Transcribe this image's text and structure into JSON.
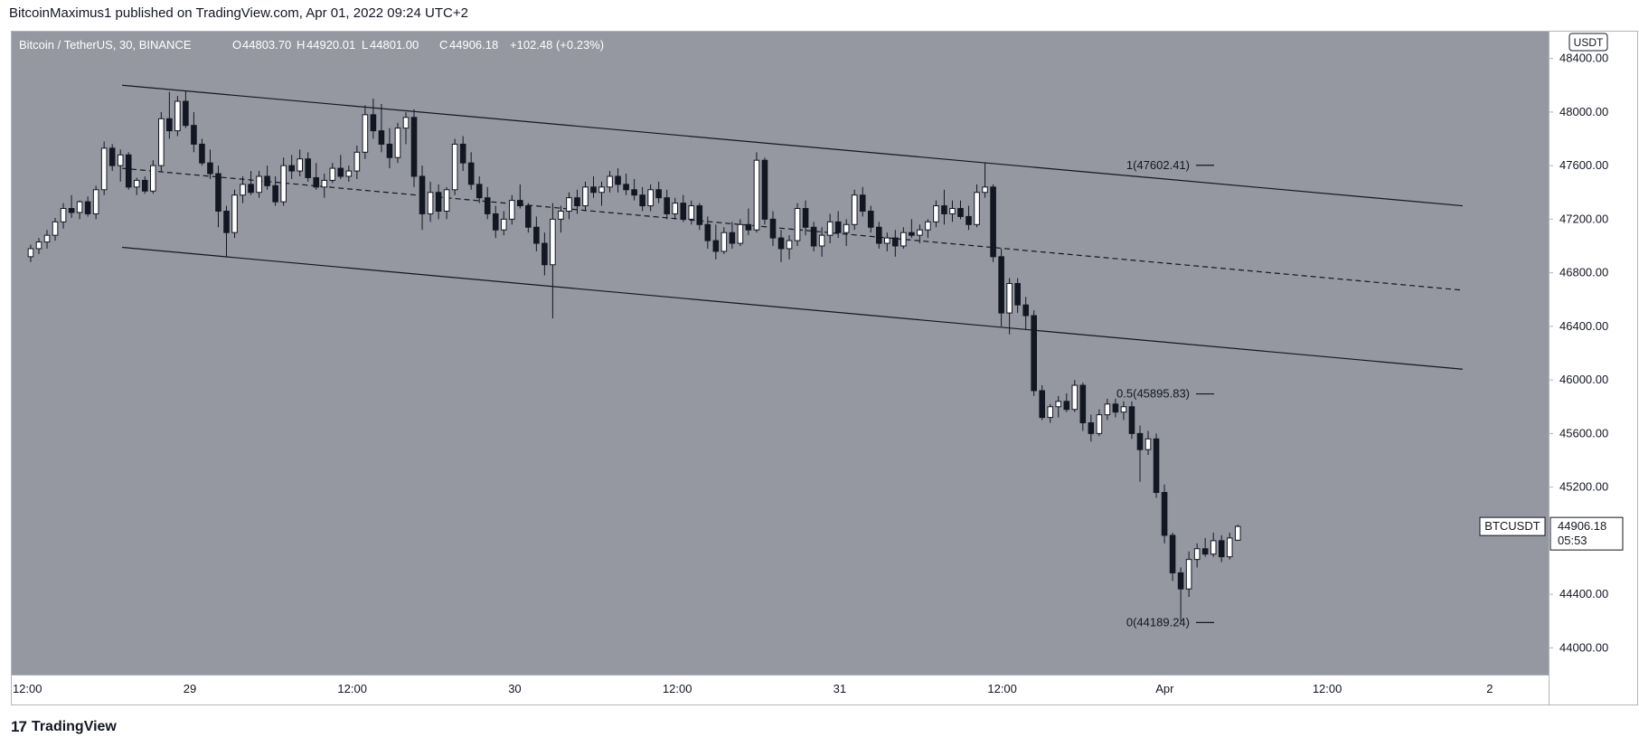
{
  "publisher_line": "BitcoinMaximus1 published on TradingView.com, Apr 01, 2022 09:24 UTC+2",
  "footer": {
    "logo_glyph": "17",
    "brand": "TradingView"
  },
  "colors": {
    "plot_bg": "#9598a1",
    "axis_bg": "#ffffff",
    "up": "#ffffff",
    "down": "#131722",
    "line": "#131722"
  },
  "chart_data": {
    "type": "candlestick",
    "symbol_line": {
      "name": "Bitcoin / TetherUS, 30, BINANCE",
      "O": "O",
      "o_val": "44803.70",
      "H": "H",
      "h_val": "44920.01",
      "L": "L",
      "l_val": "44801.00",
      "C": "C",
      "c_val": "44906.18",
      "change": "+102.48 (+0.23%)"
    },
    "currency": "USDT",
    "ylim": [
      43800,
      48600
    ],
    "y_ticks": [
      "48400.00",
      "48000.00",
      "47600.00",
      "47200.00",
      "46800.00",
      "46400.00",
      "46000.00",
      "45600.00",
      "45200.00",
      "44800.00",
      "44400.00",
      "44000.00"
    ],
    "y_tick_values": [
      48400,
      48000,
      47600,
      47200,
      46800,
      46400,
      46000,
      45600,
      45200,
      44800,
      44400,
      44000
    ],
    "x_ticks": [
      {
        "label": "12:00",
        "t": 0
      },
      {
        "label": "29",
        "t": 24
      },
      {
        "label": "12:00",
        "t": 48
      },
      {
        "label": "30",
        "t": 72
      },
      {
        "label": "12:00",
        "t": 96
      },
      {
        "label": "31",
        "t": 120
      },
      {
        "label": "12:00",
        "t": 144
      },
      {
        "label": "Apr",
        "t": 168
      },
      {
        "label": "12:00",
        "t": 192
      },
      {
        "label": "2",
        "t": 216
      }
    ],
    "x_range_hours": [
      -2.3,
      224.7
    ],
    "last_price": {
      "ticker": "BTCUSDT",
      "value": "44906.18",
      "countdown": "05:53",
      "price": 44906.18
    },
    "fib_levels": [
      {
        "label": "1(47602.41)",
        "price": 47602.41
      },
      {
        "label": "0.5(45895.83)",
        "price": 45895.83
      },
      {
        "label": "0(44189.24)",
        "price": 44189.24
      }
    ],
    "channel": {
      "upper": [
        {
          "t": 14,
          "p": 48200
        },
        {
          "t": 212,
          "p": 47300
        }
      ],
      "middle": [
        {
          "t": 14,
          "p": 47580
        },
        {
          "t": 212,
          "p": 46670
        }
      ],
      "lower": [
        {
          "t": 14,
          "p": 46990
        },
        {
          "t": 212,
          "p": 46080
        }
      ]
    },
    "candles": [
      [
        46920,
        47010,
        46880,
        46980
      ],
      [
        46980,
        47060,
        46940,
        47030
      ],
      [
        47030,
        47120,
        46980,
        47080
      ],
      [
        47080,
        47210,
        47040,
        47180
      ],
      [
        47180,
        47320,
        47130,
        47280
      ],
      [
        47280,
        47380,
        47210,
        47250
      ],
      [
        47250,
        47340,
        47200,
        47330
      ],
      [
        47330,
        47370,
        47220,
        47240
      ],
      [
        47240,
        47450,
        47200,
        47420
      ],
      [
        47420,
        47780,
        47380,
        47730
      ],
      [
        47730,
        47760,
        47560,
        47600
      ],
      [
        47600,
        47720,
        47480,
        47680
      ],
      [
        47680,
        47700,
        47420,
        47440
      ],
      [
        47440,
        47510,
        47380,
        47490
      ],
      [
        47490,
        47520,
        47390,
        47410
      ],
      [
        47410,
        47640,
        47390,
        47600
      ],
      [
        47600,
        48000,
        47550,
        47950
      ],
      [
        47950,
        48150,
        47800,
        47860
      ],
      [
        47860,
        48120,
        47820,
        48080
      ],
      [
        48080,
        48160,
        47880,
        47900
      ],
      [
        47900,
        48000,
        47700,
        47760
      ],
      [
        47760,
        47800,
        47600,
        47620
      ],
      [
        47620,
        47720,
        47500,
        47540
      ],
      [
        47540,
        47600,
        47140,
        47260
      ],
      [
        47260,
        47300,
        46920,
        47100
      ],
      [
        47100,
        47420,
        47060,
        47380
      ],
      [
        47380,
        47520,
        47320,
        47460
      ],
      [
        47460,
        47560,
        47380,
        47400
      ],
      [
        47400,
        47560,
        47360,
        47520
      ],
      [
        47520,
        47600,
        47420,
        47450
      ],
      [
        47450,
        47520,
        47300,
        47330
      ],
      [
        47330,
        47660,
        47300,
        47600
      ],
      [
        47600,
        47680,
        47500,
        47560
      ],
      [
        47560,
        47720,
        47520,
        47650
      ],
      [
        47650,
        47700,
        47480,
        47510
      ],
      [
        47510,
        47620,
        47420,
        47440
      ],
      [
        47440,
        47540,
        47360,
        47490
      ],
      [
        47490,
        47620,
        47470,
        47580
      ],
      [
        47580,
        47680,
        47500,
        47520
      ],
      [
        47520,
        47600,
        47480,
        47560
      ],
      [
        47560,
        47750,
        47500,
        47700
      ],
      [
        47700,
        48050,
        47650,
        47980
      ],
      [
        47980,
        48100,
        47800,
        47860
      ],
      [
        47860,
        48060,
        47700,
        47760
      ],
      [
        47760,
        47880,
        47580,
        47660
      ],
      [
        47660,
        47920,
        47620,
        47880
      ],
      [
        47880,
        48000,
        47760,
        47960
      ],
      [
        47960,
        48020,
        47440,
        47520
      ],
      [
        47520,
        47600,
        47120,
        47240
      ],
      [
        47240,
        47480,
        47180,
        47400
      ],
      [
        47400,
        47460,
        47200,
        47260
      ],
      [
        47260,
        47440,
        47200,
        47420
      ],
      [
        47420,
        47800,
        47380,
        47760
      ],
      [
        47760,
        47820,
        47560,
        47620
      ],
      [
        47620,
        47700,
        47420,
        47460
      ],
      [
        47460,
        47520,
        47320,
        47360
      ],
      [
        47360,
        47440,
        47200,
        47240
      ],
      [
        47240,
        47300,
        47060,
        47120
      ],
      [
        47120,
        47260,
        47080,
        47200
      ],
      [
        47200,
        47380,
        47160,
        47340
      ],
      [
        47340,
        47460,
        47280,
        47300
      ],
      [
        47300,
        47320,
        47100,
        47140
      ],
      [
        47140,
        47220,
        46960,
        47020
      ],
      [
        47020,
        47100,
        46780,
        46860
      ],
      [
        46860,
        47320,
        46460,
        47200
      ],
      [
        47200,
        47300,
        47100,
        47260
      ],
      [
        47260,
        47400,
        47200,
        47360
      ],
      [
        47360,
        47420,
        47240,
        47300
      ],
      [
        47300,
        47480,
        47260,
        47440
      ],
      [
        47440,
        47520,
        47360,
        47400
      ],
      [
        47400,
        47480,
        47300,
        47440
      ],
      [
        47440,
        47560,
        47400,
        47520
      ],
      [
        47520,
        47580,
        47400,
        47460
      ],
      [
        47460,
        47540,
        47380,
        47420
      ],
      [
        47420,
        47500,
        47340,
        47380
      ],
      [
        47380,
        47440,
        47260,
        47300
      ],
      [
        47300,
        47460,
        47260,
        47420
      ],
      [
        47420,
        47480,
        47320,
        47360
      ],
      [
        47360,
        47420,
        47200,
        47240
      ],
      [
        47240,
        47360,
        47200,
        47320
      ],
      [
        47320,
        47380,
        47180,
        47200
      ],
      [
        47200,
        47340,
        47160,
        47300
      ],
      [
        47300,
        47320,
        47120,
        47160
      ],
      [
        47160,
        47220,
        46980,
        47040
      ],
      [
        47040,
        47160,
        46900,
        46960
      ],
      [
        46960,
        47140,
        46940,
        47100
      ],
      [
        47100,
        47180,
        46980,
        47020
      ],
      [
        47020,
        47200,
        47000,
        47160
      ],
      [
        47160,
        47280,
        47080,
        47120
      ],
      [
        47120,
        47700,
        47100,
        47640
      ],
      [
        47640,
        47660,
        47160,
        47200
      ],
      [
        47200,
        47260,
        47000,
        47060
      ],
      [
        47060,
        47120,
        46880,
        46980
      ],
      [
        46980,
        47080,
        46900,
        47040
      ],
      [
        47040,
        47320,
        47000,
        47280
      ],
      [
        47280,
        47340,
        47080,
        47140
      ],
      [
        47140,
        47180,
        46960,
        47000
      ],
      [
        47000,
        47140,
        46920,
        47080
      ],
      [
        47080,
        47240,
        47020,
        47180
      ],
      [
        47180,
        47260,
        47060,
        47100
      ],
      [
        47100,
        47200,
        47000,
        47160
      ],
      [
        47160,
        47420,
        47120,
        47380
      ],
      [
        47380,
        47440,
        47220,
        47260
      ],
      [
        47260,
        47300,
        47100,
        47140
      ],
      [
        47140,
        47180,
        46980,
        47020
      ],
      [
        47020,
        47100,
        46960,
        47060
      ],
      [
        47060,
        47120,
        46920,
        47000
      ],
      [
        47000,
        47140,
        46980,
        47100
      ],
      [
        47100,
        47200,
        47060,
        47080
      ],
      [
        47080,
        47160,
        47020,
        47120
      ],
      [
        47120,
        47200,
        47060,
        47180
      ],
      [
        47180,
        47340,
        47140,
        47300
      ],
      [
        47300,
        47420,
        47160,
        47240
      ],
      [
        47240,
        47340,
        47180,
        47280
      ],
      [
        47280,
        47340,
        47200,
        47220
      ],
      [
        47220,
        47300,
        47120,
        47160
      ],
      [
        47160,
        47460,
        47140,
        47400
      ],
      [
        47400,
        47620,
        47360,
        47440
      ],
      [
        47440,
        47460,
        46880,
        46920
      ],
      [
        46920,
        46980,
        46400,
        46500
      ],
      [
        46500,
        46760,
        46340,
        46720
      ],
      [
        46720,
        46760,
        46500,
        46560
      ],
      [
        46560,
        46620,
        46380,
        46480
      ],
      [
        46480,
        46520,
        45880,
        45920
      ],
      [
        45920,
        45960,
        45700,
        45720
      ],
      [
        45720,
        45820,
        45680,
        45800
      ],
      [
        45800,
        45880,
        45720,
        45840
      ],
      [
        45840,
        45900,
        45760,
        45780
      ],
      [
        45780,
        46000,
        45760,
        45960
      ],
      [
        45960,
        45980,
        45620,
        45680
      ],
      [
        45680,
        45740,
        45540,
        45600
      ],
      [
        45600,
        45780,
        45580,
        45740
      ],
      [
        45740,
        45860,
        45700,
        45820
      ],
      [
        45820,
        45860,
        45720,
        45760
      ],
      [
        45760,
        45840,
        45700,
        45800
      ],
      [
        45800,
        45840,
        45560,
        45600
      ],
      [
        45600,
        45660,
        45240,
        45480
      ],
      [
        45480,
        45620,
        45440,
        45560
      ],
      [
        45560,
        45600,
        45120,
        45160
      ],
      [
        45160,
        45220,
        44780,
        44840
      ],
      [
        44840,
        44860,
        44500,
        44560
      ],
      [
        44560,
        44600,
        44200,
        44440
      ],
      [
        44440,
        44720,
        44380,
        44660
      ],
      [
        44660,
        44780,
        44600,
        44740
      ],
      [
        44740,
        44820,
        44680,
        44700
      ],
      [
        44700,
        44860,
        44680,
        44800
      ],
      [
        44800,
        44840,
        44640,
        44680
      ],
      [
        44680,
        44860,
        44660,
        44820
      ],
      [
        44803.7,
        44920.01,
        44801.0,
        44906.18
      ]
    ]
  }
}
